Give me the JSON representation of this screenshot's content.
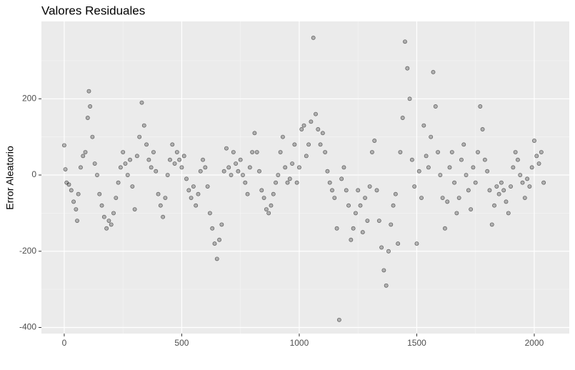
{
  "chart_data": {
    "type": "scatter",
    "title": "Valores Residuales",
    "y_label": "Error Aleatorio",
    "x": [
      0,
      5,
      10,
      20,
      30,
      40,
      50,
      55,
      60,
      70,
      80,
      90,
      100,
      105,
      110,
      120,
      130,
      140,
      150,
      160,
      170,
      180,
      190,
      200,
      210,
      220,
      230,
      240,
      250,
      260,
      270,
      280,
      290,
      300,
      310,
      320,
      330,
      340,
      350,
      360,
      370,
      380,
      390,
      400,
      410,
      420,
      430,
      440,
      450,
      460,
      470,
      480,
      490,
      500,
      510,
      520,
      530,
      540,
      550,
      560,
      570,
      580,
      590,
      600,
      610,
      620,
      630,
      640,
      650,
      660,
      670,
      680,
      690,
      700,
      710,
      720,
      730,
      740,
      750,
      760,
      770,
      780,
      790,
      800,
      810,
      820,
      830,
      840,
      850,
      860,
      870,
      880,
      890,
      900,
      910,
      920,
      930,
      940,
      950,
      960,
      970,
      980,
      990,
      1000,
      1010,
      1020,
      1030,
      1040,
      1050,
      1060,
      1070,
      1080,
      1090,
      1100,
      1110,
      1120,
      1130,
      1140,
      1150,
      1160,
      1170,
      1180,
      1190,
      1200,
      1210,
      1220,
      1230,
      1240,
      1250,
      1260,
      1270,
      1280,
      1290,
      1300,
      1310,
      1320,
      1330,
      1340,
      1350,
      1360,
      1370,
      1380,
      1390,
      1400,
      1410,
      1420,
      1430,
      1440,
      1450,
      1460,
      1470,
      1480,
      1490,
      1500,
      1510,
      1520,
      1530,
      1540,
      1550,
      1560,
      1570,
      1580,
      1590,
      1600,
      1610,
      1620,
      1630,
      1640,
      1650,
      1660,
      1670,
      1680,
      1690,
      1700,
      1710,
      1720,
      1730,
      1740,
      1750,
      1760,
      1770,
      1780,
      1790,
      1800,
      1810,
      1820,
      1830,
      1840,
      1850,
      1860,
      1870,
      1880,
      1890,
      1900,
      1910,
      1920,
      1930,
      1940,
      1950,
      1960,
      1970,
      1980,
      1990,
      2000,
      2010,
      2020,
      2030,
      2040
    ],
    "values": [
      78,
      15,
      -20,
      -25,
      -40,
      -70,
      -90,
      -120,
      -50,
      20,
      50,
      60,
      150,
      220,
      180,
      100,
      30,
      0,
      -50,
      -80,
      -110,
      -140,
      -120,
      -130,
      -100,
      -60,
      -20,
      20,
      60,
      30,
      0,
      40,
      -30,
      -90,
      50,
      100,
      190,
      130,
      80,
      40,
      20,
      60,
      10,
      -50,
      -80,
      -110,
      -60,
      0,
      40,
      80,
      30,
      60,
      40,
      20,
      50,
      -10,
      -40,
      -60,
      -30,
      -80,
      -50,
      10,
      40,
      20,
      -30,
      -100,
      -140,
      -180,
      -220,
      -170,
      -130,
      10,
      70,
      20,
      0,
      60,
      30,
      10,
      40,
      0,
      -20,
      -50,
      20,
      60,
      110,
      60,
      10,
      -40,
      -60,
      -90,
      -100,
      -80,
      -50,
      -20,
      0,
      60,
      100,
      20,
      -20,
      -10,
      30,
      80,
      -20,
      20,
      120,
      130,
      50,
      80,
      140,
      360,
      160,
      120,
      80,
      110,
      60,
      10,
      -20,
      -40,
      -60,
      -140,
      -380,
      -10,
      20,
      -40,
      -80,
      -170,
      -140,
      -100,
      -40,
      -80,
      -150,
      -60,
      -120,
      -30,
      60,
      90,
      -40,
      -120,
      -190,
      -250,
      -290,
      -200,
      -130,
      -80,
      -50,
      -180,
      60,
      150,
      350,
      280,
      200,
      40,
      -30,
      -180,
      10,
      -60,
      130,
      50,
      20,
      100,
      270,
      180,
      60,
      0,
      -60,
      -140,
      -70,
      20,
      60,
      -20,
      -100,
      -60,
      40,
      80,
      0,
      -40,
      -90,
      20,
      -20,
      60,
      180,
      120,
      40,
      10,
      -40,
      -130,
      -80,
      -30,
      -50,
      -20,
      -40,
      -70,
      -100,
      -30,
      20,
      60,
      40,
      0,
      -20,
      -60,
      -10,
      -30,
      20,
      90,
      50,
      30,
      60,
      -20
    ],
    "xlim": [
      -97,
      2149
    ],
    "ylim": [
      -416,
      403
    ],
    "xticks": [
      0,
      500,
      1000,
      1500,
      2000
    ],
    "yticks": [
      -400,
      -200,
      0,
      200
    ],
    "x_minor_grid": [
      250,
      750,
      1250,
      1750
    ],
    "y_minor_grid": [
      -300,
      -100,
      100,
      300
    ],
    "color": "#000000",
    "grid": true
  }
}
